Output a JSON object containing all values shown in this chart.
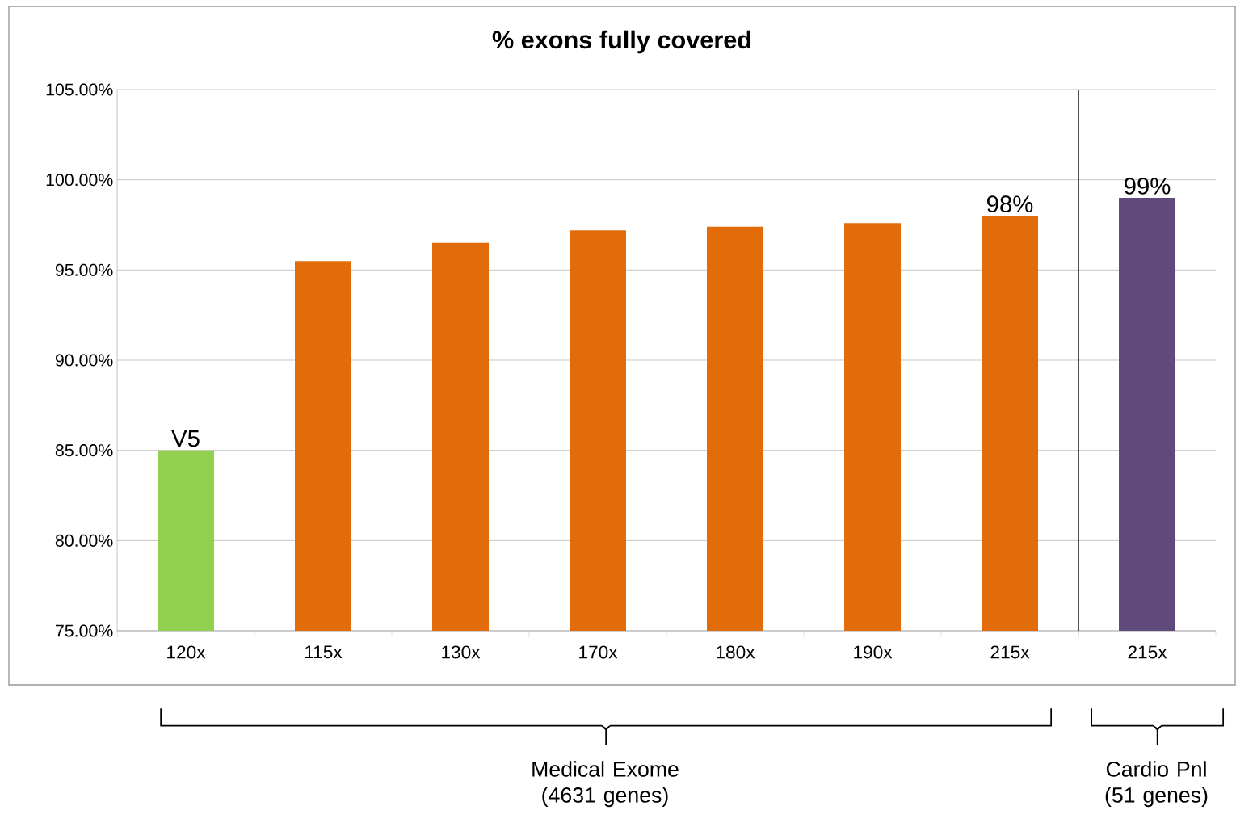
{
  "chart_data": [
    {
      "type": "bar",
      "title": "% exons fully covered",
      "categories": [
        "120x",
        "115x",
        "130x",
        "170x",
        "180x",
        "190x",
        "215x"
      ],
      "values": [
        85.0,
        95.5,
        96.5,
        97.2,
        97.4,
        97.6,
        98
      ],
      "colors": [
        "#92d050",
        "#e36c0a",
        "#e36c0a",
        "#e36c0a",
        "#e36c0a",
        "#e36c0a",
        "#e36c0a"
      ],
      "value_labels": [
        "V5",
        null,
        null,
        null,
        null,
        null,
        "98%"
      ],
      "ylim": [
        75,
        105
      ],
      "yticks": [
        {
          "value": 75,
          "label": "75.00%"
        },
        {
          "value": 80,
          "label": "80.00%"
        },
        {
          "value": 85,
          "label": "85.00%"
        },
        {
          "value": 90,
          "label": "90.00%"
        },
        {
          "value": 95,
          "label": "95.00%"
        },
        {
          "value": 100,
          "label": "100.00%"
        },
        {
          "value": 105,
          "label": "105.00%"
        }
      ],
      "grid": "y",
      "annotations": [
        "Medical Exome (4631 genes)"
      ]
    },
    {
      "type": "bar",
      "categories": [
        "215x"
      ],
      "values": [
        99
      ],
      "colors": [
        "#604a7b"
      ],
      "value_labels": [
        "99%"
      ],
      "ylim": [
        75,
        105
      ],
      "yticks": [
        75,
        80,
        85,
        90,
        95,
        100,
        105
      ],
      "tick_labels": "x",
      "grid": "y",
      "annotations": [
        "Cardio Pnl (51 genes)"
      ]
    }
  ]
}
